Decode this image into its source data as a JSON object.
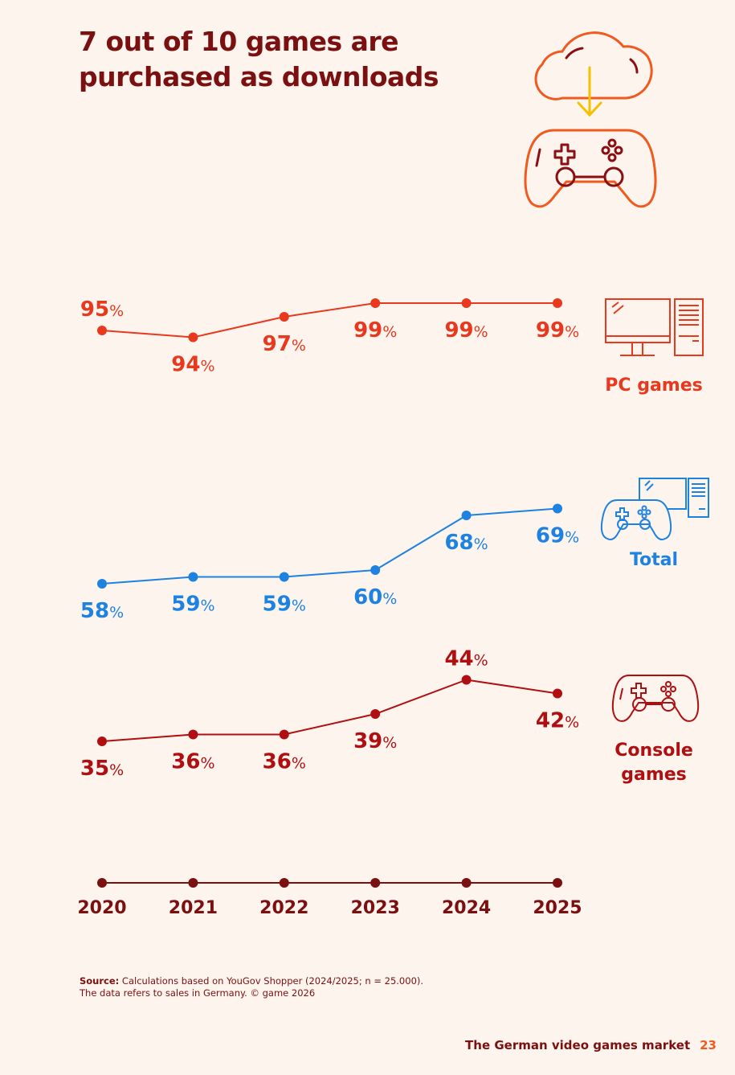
{
  "colors": {
    "background": "#fdf4ee",
    "title": "#7a1010",
    "pc": "#e8391e",
    "total": "#1e82e0",
    "console": "#b00f12",
    "axis": "#7a1010",
    "icon_orange": "#ef5a1e",
    "icon_yellow": "#f5c000",
    "icon_dark": "#8a0f12",
    "footer_num": "#ef5a1e"
  },
  "title_lines": [
    "7 out of 10 games are",
    "purchased as downloads"
  ],
  "icons": {
    "header": [
      "cloud-download-icon",
      "gamepad-icon"
    ],
    "pc": "pc-monitor-tower-icon",
    "total": "gamepad-and-pc-icon",
    "console": "gamepad-icon"
  },
  "chart_data": {
    "type": "line",
    "x": [
      "2020",
      "2021",
      "2022",
      "2023",
      "2024",
      "2025"
    ],
    "unit": "%",
    "series": [
      {
        "key": "pc",
        "name": "PC games",
        "label_lines": [
          "PC games"
        ],
        "values": [
          95,
          94,
          97,
          99,
          99,
          99
        ]
      },
      {
        "key": "total",
        "name": "Total",
        "label_lines": [
          "Total"
        ],
        "values": [
          58,
          59,
          59,
          60,
          68,
          69
        ]
      },
      {
        "key": "console",
        "name": "Console games",
        "label_lines": [
          "Console",
          "games"
        ],
        "values": [
          35,
          36,
          36,
          39,
          44,
          42
        ]
      }
    ],
    "grid": false,
    "legend": "right"
  },
  "source": {
    "label": "Source:",
    "text": "Calculations based on YouGov Shopper (2024/2025; n = 25.000).",
    "line2": "The data refers to sales in Germany. © game 2026"
  },
  "footer": {
    "publication": "The German video games market",
    "page_number": "23"
  }
}
